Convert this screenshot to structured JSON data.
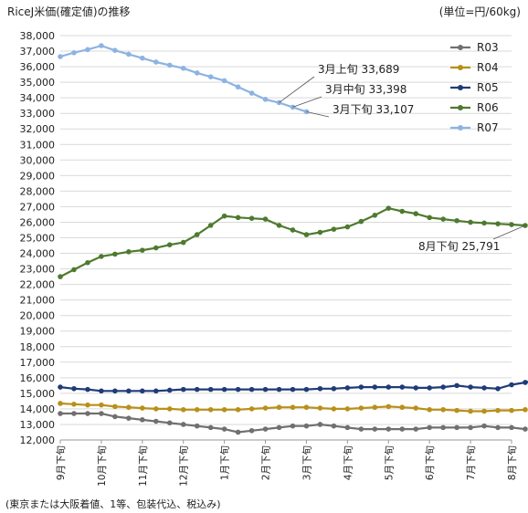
{
  "chart_data": {
    "type": "line",
    "title": "RiceJ米価(確定値)の推移",
    "unit_label": "(単位=円/60kg)",
    "footnote": "(東京または大阪着値、1等、包装代込、税込み)",
    "ylim": [
      12000,
      38000
    ],
    "ystep": 1000,
    "x_labels": [
      "9月下旬",
      "10月下旬",
      "11月下旬",
      "12月下旬",
      "1月下旬",
      "2月下旬",
      "3月下旬",
      "4月下旬",
      "5月下旬",
      "6月下旬",
      "7月下旬",
      "8月下旬"
    ],
    "points_per_label": 3,
    "grid": true,
    "legend_position": "right",
    "series": [
      {
        "name": "R03",
        "color": "#707070",
        "values": [
          13700,
          13700,
          13700,
          13700,
          13500,
          13400,
          13300,
          13200,
          13100,
          13000,
          12900,
          12800,
          12700,
          12500,
          12600,
          12700,
          12800,
          12900,
          12900,
          13000,
          12900,
          12800,
          12700,
          12700,
          12700,
          12700,
          12700,
          12800,
          12800,
          12800,
          12800,
          12900,
          12800,
          12800,
          12700
        ]
      },
      {
        "name": "R04",
        "color": "#b8901a",
        "values": [
          14350,
          14300,
          14250,
          14250,
          14150,
          14100,
          14050,
          14000,
          14000,
          13950,
          13950,
          13950,
          13950,
          13950,
          14000,
          14050,
          14100,
          14100,
          14100,
          14050,
          14000,
          14000,
          14050,
          14100,
          14150,
          14100,
          14050,
          13950,
          13950,
          13900,
          13850,
          13850,
          13900,
          13900,
          13950
        ]
      },
      {
        "name": "R05",
        "color": "#1f3c78",
        "values": [
          15400,
          15300,
          15250,
          15150,
          15150,
          15150,
          15150,
          15150,
          15200,
          15250,
          15250,
          15250,
          15250,
          15250,
          15250,
          15250,
          15250,
          15250,
          15250,
          15300,
          15300,
          15350,
          15400,
          15400,
          15400,
          15400,
          15350,
          15350,
          15400,
          15500,
          15400,
          15350,
          15300,
          15550,
          15700,
          15900
        ]
      },
      {
        "name": "R06",
        "color": "#4e7a2e",
        "values": [
          22500,
          22950,
          23400,
          23800,
          23950,
          24100,
          24200,
          24350,
          24550,
          24700,
          25200,
          25800,
          26400,
          26300,
          26250,
          26200,
          25800,
          25500,
          25200,
          25350,
          25550,
          25700,
          26050,
          26450,
          26900,
          26700,
          26550,
          26300,
          26200,
          26100,
          26000,
          25950,
          25900,
          25850,
          25791
        ]
      },
      {
        "name": "R07",
        "color": "#8db3e2",
        "values": [
          36650,
          36900,
          37100,
          37350,
          37050,
          36800,
          36550,
          36300,
          36100,
          35900,
          35600,
          35350,
          35100,
          34700,
          34300,
          33900,
          33689,
          33398,
          33107
        ]
      }
    ],
    "annotations": [
      {
        "text": "3月上旬 33,689",
        "series": "R07",
        "index": 16
      },
      {
        "text": "3月中旬 33,398",
        "series": "R07",
        "index": 17
      },
      {
        "text": "3月下旬 33,107",
        "series": "R07",
        "index": 18
      },
      {
        "text": "8月下旬 25,791",
        "series": "R06",
        "index": 34
      }
    ]
  }
}
